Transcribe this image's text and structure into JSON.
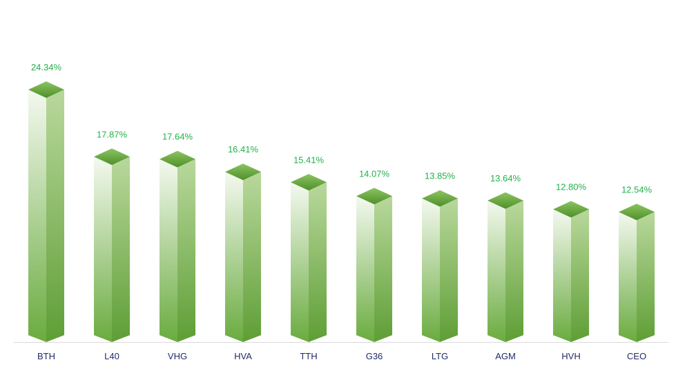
{
  "chart_data": {
    "type": "bar",
    "style": "3d-prism",
    "categories": [
      "BTH",
      "L40",
      "VHG",
      "HVA",
      "TTH",
      "G36",
      "LTG",
      "AGM",
      "HVH",
      "CEO"
    ],
    "values": [
      24.34,
      17.87,
      17.64,
      16.41,
      15.41,
      14.07,
      13.85,
      13.64,
      12.8,
      12.54
    ],
    "data_labels": [
      "24.34%",
      "17.87%",
      "17.64%",
      "16.41%",
      "15.41%",
      "14.07%",
      "13.85%",
      "13.64%",
      "12.80%",
      "12.54%"
    ],
    "title": "",
    "xlabel": "",
    "ylabel": "",
    "ylim": [
      0,
      25
    ],
    "grid": false,
    "legend": "none",
    "colors": {
      "bar_light": "#f4f9f0",
      "bar_dark": "#6aab3f",
      "bar_side_light": "#b9d89c",
      "bar_side_dark": "#5e9e35",
      "top_light": "#8bc45f",
      "top_dark": "#4f8f2b",
      "data_label": "#22b04b",
      "category_label": "#1f2a6b",
      "axis": "#d9d9d9"
    }
  }
}
